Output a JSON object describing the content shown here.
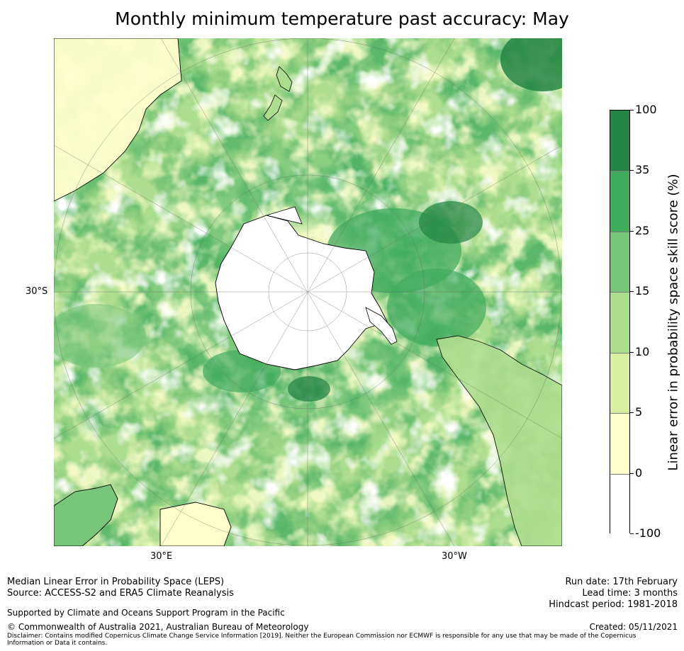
{
  "title": "Monthly minimum temperature past accuracy: May",
  "map": {
    "projection": "south-polar-stereographic",
    "labels": {
      "lat": "30°S",
      "lon_left": "30°E",
      "lon_right": "30°W"
    }
  },
  "colorbar": {
    "label": "Linear error in probability space skill score (%)",
    "ticks": [
      "100",
      "35",
      "25",
      "15",
      "10",
      "5",
      "0",
      "-100"
    ],
    "colors": [
      "#238443",
      "#41ab5d",
      "#78c679",
      "#addd8e",
      "#d9f0a3",
      "#ffffcc",
      "#ffffff"
    ]
  },
  "footer": {
    "line1": "Median Linear Error in Probability Space (LEPS)",
    "line2": "Source: ACCESS-S2 and ERA5 Climate Reanalysis",
    "support": "Supported by Climate and Oceans Support Program in the Pacific",
    "copyright": "© Commonwealth of Australia 2021, Australian Bureau of Meteorology",
    "disclaimer": "Disclaimer: Contains modified Copernicus Climate Change Service Information [2019]. Neither the European Commission nor ECMWF is responsible for any use that may be made of the Copernicus Information or Data it contains.",
    "run_date": "Run date: 17th February",
    "lead_time": "Lead time: 3 months",
    "hindcast": "Hindcast period: 1981-2018",
    "created": "Created: 05/11/2021"
  }
}
